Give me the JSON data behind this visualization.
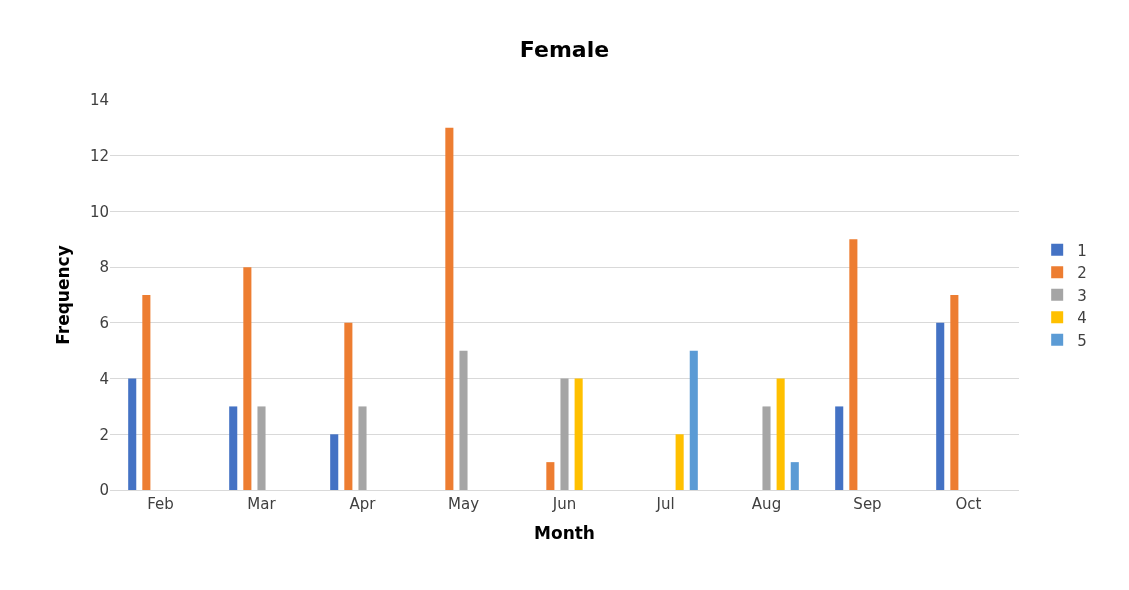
{
  "chart_data": {
    "type": "bar",
    "title": "Female",
    "xlabel": "Month",
    "ylabel": "Frequency",
    "categories": [
      "Feb",
      "Mar",
      "Apr",
      "May",
      "Jun",
      "Jul",
      "Aug",
      "Sep",
      "Oct"
    ],
    "series": [
      {
        "name": "1",
        "color": "#4472c4",
        "values": [
          4,
          3,
          2,
          0,
          0,
          0,
          0,
          3,
          6
        ]
      },
      {
        "name": "2",
        "color": "#ed7d31",
        "values": [
          7,
          8,
          6,
          13,
          1,
          0,
          0,
          9,
          7
        ]
      },
      {
        "name": "3",
        "color": "#a5a5a5",
        "values": [
          0,
          3,
          3,
          5,
          4,
          0,
          3,
          0,
          0
        ]
      },
      {
        "name": "4",
        "color": "#ffc000",
        "values": [
          0,
          0,
          0,
          0,
          4,
          2,
          4,
          0,
          0
        ]
      },
      {
        "name": "5",
        "color": "#5b9bd5",
        "values": [
          0,
          0,
          0,
          0,
          0,
          5,
          1,
          0,
          0
        ]
      }
    ],
    "ylim": [
      0,
      14
    ],
    "yticks": [
      0,
      2,
      4,
      6,
      8,
      10,
      12,
      14
    ],
    "grid": "y",
    "legend": "right"
  }
}
